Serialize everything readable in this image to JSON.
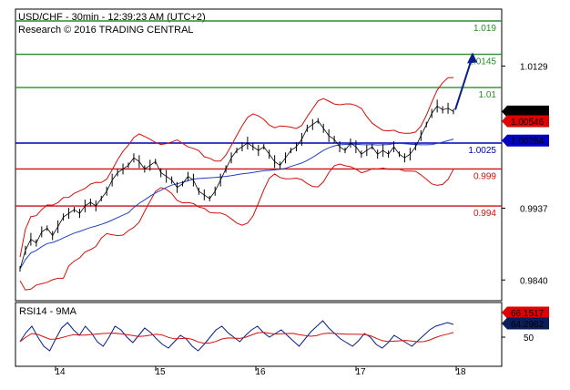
{
  "header": {
    "line1": "USD/CHF - 30min - 12:39:23 AM (UTC+2)",
    "line2": "Research © 2016 TRADING CENTRAL"
  },
  "chart_data": {
    "type": "line",
    "instrument": "USD/CHF",
    "timeframe": "30min",
    "x_labels": [
      "14",
      "15",
      "16",
      "17",
      "18"
    ],
    "y_axis_ticks": [
      "1.0129",
      "0.9937",
      "0.9840"
    ],
    "ylim": [
      0.9812,
      1.0206
    ],
    "levels": [
      {
        "label": "1.019",
        "value": 1.019,
        "color": "#2e8b2e"
      },
      {
        "label": "1.0145",
        "value": 1.0145,
        "color": "#2e8b2e"
      },
      {
        "label": "1.01",
        "value": 1.01,
        "color": "#2e8b2e"
      },
      {
        "label": "1.0025",
        "value": 1.0025,
        "color": "#0000c0"
      },
      {
        "label": "0.999",
        "value": 0.999,
        "color": "#d01010"
      },
      {
        "label": "0.994",
        "value": 0.994,
        "color": "#d01010"
      }
    ],
    "badges": [
      {
        "label": "1.00676",
        "value": 1.00676,
        "bg": "#000000"
      },
      {
        "label": "1.00546",
        "value": 1.00546,
        "bg": "#e00000"
      },
      {
        "label": "1.00284",
        "value": 1.00284,
        "bg": "#0000c0"
      }
    ],
    "price_series": [
      0.9855,
      0.988,
      0.9895,
      0.989,
      0.9905,
      0.991,
      0.99,
      0.9912,
      0.9925,
      0.993,
      0.9935,
      0.993,
      0.994,
      0.9945,
      0.994,
      0.995,
      0.996,
      0.9975,
      0.9985,
      0.999,
      0.9995,
      1.0005,
      1.0,
      0.999,
      0.9995,
      1.0,
      0.9985,
      0.998,
      0.9975,
      0.9965,
      0.997,
      0.998,
      0.9975,
      0.996,
      0.9955,
      0.995,
      0.996,
      0.9975,
      0.999,
      1.0005,
      1.0015,
      1.002,
      1.0025,
      1.002,
      1.0015,
      1.002,
      1.001,
      1.0,
      0.9995,
      1.0005,
      1.0015,
      1.002,
      1.003,
      1.0045,
      1.005,
      1.0055,
      1.0045,
      1.0035,
      1.003,
      1.002,
      1.0015,
      1.0025,
      1.002,
      1.001,
      1.0015,
      1.002,
      1.001,
      1.0015,
      1.001,
      1.002,
      1.001,
      1.0005,
      1.001,
      1.002,
      1.0035,
      1.005,
      1.0065,
      1.0075,
      1.007,
      1.0072,
      1.00676
    ],
    "projection": {
      "from": 1.007,
      "to": 1.0145
    },
    "rsi": {
      "title": "RSI14 - 9MA",
      "ylim": [
        20,
        80
      ],
      "ticks": [
        "50"
      ],
      "badges": [
        {
          "label": "66.1517",
          "value": 66.1517,
          "bg": "#e00000"
        },
        {
          "label": "64.2962",
          "value": 64.2962,
          "bg": "#0a1e5c"
        }
      ],
      "series": [
        45,
        55,
        62,
        50,
        40,
        35,
        48,
        60,
        66,
        58,
        52,
        62,
        55,
        45,
        40,
        50,
        62,
        58,
        50,
        44,
        52,
        60,
        55,
        48,
        42,
        38,
        45,
        52,
        48,
        40,
        35,
        42,
        50,
        58,
        62,
        55,
        50,
        45,
        52,
        58,
        62,
        55,
        50,
        54,
        58,
        52,
        46,
        40,
        48,
        56,
        62,
        68,
        60,
        54,
        48,
        44,
        40,
        46,
        54,
        50,
        42,
        38,
        44,
        52,
        48,
        44,
        40,
        46,
        52,
        58,
        62,
        64,
        66,
        64
      ]
    }
  }
}
